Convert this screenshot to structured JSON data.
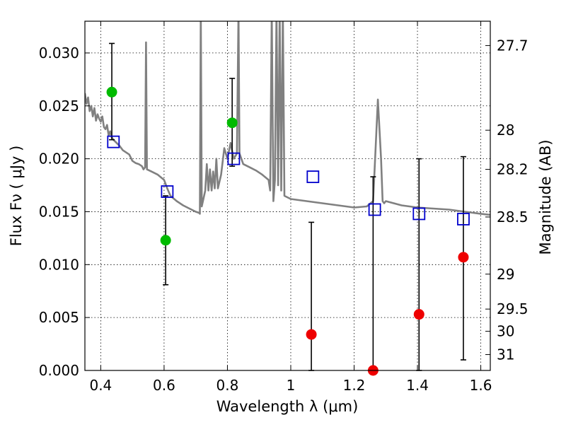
{
  "chart_data": {
    "type": "scatter",
    "xlabel": "Wavelength  λ (μm)",
    "ylabel": "Flux  Fν  ( μJy )",
    "ylabel_right": "Magnitude (AB)",
    "xlim": [
      0.35,
      1.63
    ],
    "ylim": [
      0.0,
      0.033
    ],
    "grid": true,
    "x_ticks": [
      {
        "value": 0.4,
        "label": "0.4"
      },
      {
        "value": 0.6,
        "label": "0.6"
      },
      {
        "value": 0.8,
        "label": "0.8"
      },
      {
        "value": 1.0,
        "label": "1"
      },
      {
        "value": 1.2,
        "label": "1.2"
      },
      {
        "value": 1.4,
        "label": "1.4"
      },
      {
        "value": 1.6,
        "label": "1.6"
      }
    ],
    "y_ticks": [
      {
        "value": 0.0,
        "label": "0.000"
      },
      {
        "value": 0.005,
        "label": "0.005"
      },
      {
        "value": 0.01,
        "label": "0.010"
      },
      {
        "value": 0.015,
        "label": "0.015"
      },
      {
        "value": 0.02,
        "label": "0.020"
      },
      {
        "value": 0.025,
        "label": "0.025"
      },
      {
        "value": 0.03,
        "label": "0.030"
      }
    ],
    "right_ticks": [
      {
        "flux": 0.0307,
        "label": "27.7"
      },
      {
        "flux": 0.0227,
        "label": "28"
      },
      {
        "flux": 0.019,
        "label": "28.2"
      },
      {
        "flux": 0.0145,
        "label": "28.5"
      },
      {
        "flux": 0.0091,
        "label": "29"
      },
      {
        "flux": 0.0058,
        "label": "29.5"
      },
      {
        "flux": 0.0037,
        "label": "30"
      },
      {
        "flux": 0.0015,
        "label": "31"
      }
    ],
    "series": [
      {
        "name": "model spectrum",
        "kind": "line",
        "color": "#808080",
        "points": [
          [
            0.35,
            0.0262
          ],
          [
            0.355,
            0.0252
          ],
          [
            0.36,
            0.0258
          ],
          [
            0.365,
            0.0245
          ],
          [
            0.37,
            0.025
          ],
          [
            0.375,
            0.024
          ],
          [
            0.38,
            0.0248
          ],
          [
            0.385,
            0.0236
          ],
          [
            0.39,
            0.0242
          ],
          [
            0.395,
            0.0238
          ],
          [
            0.4,
            0.0235
          ],
          [
            0.405,
            0.024
          ],
          [
            0.41,
            0.023
          ],
          [
            0.415,
            0.0228
          ],
          [
            0.42,
            0.0232
          ],
          [
            0.425,
            0.0222
          ],
          [
            0.43,
            0.0226
          ],
          [
            0.435,
            0.022
          ],
          [
            0.44,
            0.0218
          ],
          [
            0.45,
            0.0215
          ],
          [
            0.46,
            0.0212
          ],
          [
            0.47,
            0.0208
          ],
          [
            0.48,
            0.0206
          ],
          [
            0.49,
            0.0204
          ],
          [
            0.5,
            0.0198
          ],
          [
            0.51,
            0.0196
          ],
          [
            0.52,
            0.0195
          ],
          [
            0.53,
            0.0193
          ],
          [
            0.535,
            0.019
          ],
          [
            0.54,
            0.0192
          ],
          [
            0.543,
            0.031
          ],
          [
            0.546,
            0.019
          ],
          [
            0.56,
            0.0188
          ],
          [
            0.58,
            0.0185
          ],
          [
            0.6,
            0.018
          ],
          [
            0.61,
            0.0172
          ],
          [
            0.62,
            0.0165
          ],
          [
            0.64,
            0.016
          ],
          [
            0.66,
            0.0156
          ],
          [
            0.68,
            0.0153
          ],
          [
            0.7,
            0.015
          ],
          [
            0.71,
            0.0149
          ],
          [
            0.713,
            0.0148
          ],
          [
            0.716,
            0.034
          ],
          [
            0.719,
            0.0155
          ],
          [
            0.73,
            0.017
          ],
          [
            0.735,
            0.0195
          ],
          [
            0.74,
            0.017
          ],
          [
            0.745,
            0.019
          ],
          [
            0.75,
            0.017
          ],
          [
            0.755,
            0.0188
          ],
          [
            0.76,
            0.0172
          ],
          [
            0.765,
            0.02
          ],
          [
            0.77,
            0.0172
          ],
          [
            0.78,
            0.0185
          ],
          [
            0.79,
            0.021
          ],
          [
            0.8,
            0.02
          ],
          [
            0.81,
            0.0215
          ],
          [
            0.82,
            0.02
          ],
          [
            0.83,
            0.0205
          ],
          [
            0.835,
            0.034
          ],
          [
            0.838,
            0.0205
          ],
          [
            0.85,
            0.0195
          ],
          [
            0.87,
            0.0192
          ],
          [
            0.89,
            0.0189
          ],
          [
            0.91,
            0.0185
          ],
          [
            0.93,
            0.018
          ],
          [
            0.935,
            0.017
          ],
          [
            0.94,
            0.034
          ],
          [
            0.945,
            0.016
          ],
          [
            0.95,
            0.018
          ],
          [
            0.955,
            0.034
          ],
          [
            0.96,
            0.0175
          ],
          [
            0.965,
            0.034
          ],
          [
            0.97,
            0.017
          ],
          [
            0.975,
            0.034
          ],
          [
            0.98,
            0.0165
          ],
          [
            1.0,
            0.0162
          ],
          [
            1.05,
            0.016
          ],
          [
            1.1,
            0.0158
          ],
          [
            1.15,
            0.0156
          ],
          [
            1.2,
            0.0154
          ],
          [
            1.24,
            0.0155
          ],
          [
            1.26,
            0.016
          ],
          [
            1.275,
            0.0256
          ],
          [
            1.285,
            0.02
          ],
          [
            1.29,
            0.016
          ],
          [
            1.295,
            0.0158
          ],
          [
            1.3,
            0.016
          ],
          [
            1.35,
            0.0156
          ],
          [
            1.4,
            0.0154
          ],
          [
            1.45,
            0.0153
          ],
          [
            1.5,
            0.0152
          ],
          [
            1.55,
            0.015
          ],
          [
            1.6,
            0.0148
          ],
          [
            1.63,
            0.0147
          ]
        ]
      },
      {
        "name": "green detections",
        "kind": "points",
        "marker": "circle",
        "color": "#00bb00",
        "points": [
          [
            0.435,
            0.0263
          ],
          [
            0.605,
            0.0123
          ],
          [
            0.815,
            0.0234
          ]
        ]
      },
      {
        "name": "red detections",
        "kind": "points",
        "marker": "circle",
        "color": "#ee0000",
        "points": [
          [
            1.065,
            0.0034
          ],
          [
            1.26,
            0.0
          ],
          [
            1.405,
            0.0053
          ],
          [
            1.545,
            0.0107
          ]
        ]
      },
      {
        "name": "model photometry",
        "kind": "points",
        "marker": "square-open",
        "color": "#0000cc",
        "points": [
          [
            0.44,
            0.0216
          ],
          [
            0.61,
            0.0169
          ],
          [
            0.82,
            0.02
          ],
          [
            1.07,
            0.0183
          ],
          [
            1.265,
            0.0152
          ],
          [
            1.405,
            0.0148
          ],
          [
            1.545,
            0.0143
          ]
        ]
      }
    ],
    "error_bars": [
      {
        "x": 0.435,
        "low": 0.0218,
        "high": 0.0309
      },
      {
        "x": 0.605,
        "low": 0.0081,
        "high": 0.0165
      },
      {
        "x": 0.815,
        "low": 0.0193,
        "high": 0.0276
      },
      {
        "x": 1.065,
        "low": 0.0,
        "high": 0.014
      },
      {
        "x": 1.26,
        "low": 0.0,
        "high": 0.0183
      },
      {
        "x": 1.405,
        "low": 0.0,
        "high": 0.02
      },
      {
        "x": 1.545,
        "low": 0.001,
        "high": 0.0202
      }
    ]
  }
}
